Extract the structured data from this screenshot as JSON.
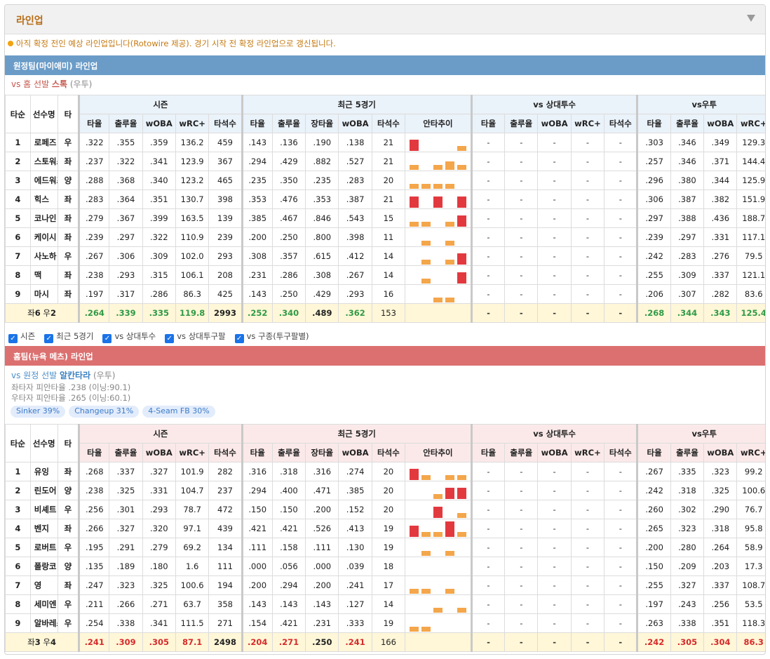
{
  "header": {
    "title": "라인업"
  },
  "notice": "아직 확정 전인 예상 라인업입니다(Rotowire 제공). 경기 시작 전 확정 라인업으로 갱신됩니다.",
  "away": {
    "bar_title": "원정팀(마이애미) 라인업",
    "vs_prefix": "vs 홈 선발 ",
    "pitcher": "스톡",
    "hand": "(우투)",
    "head_groups": [
      "시즌",
      "최근 5경기",
      "vs 상대투수",
      "vs우투"
    ],
    "col_headers": [
      "타순",
      "선수명",
      "타",
      "타율",
      "출루율",
      "wOBA",
      "wRC+",
      "타석수",
      "타율",
      "출루율",
      "장타율",
      "wOBA",
      "타석수",
      "안타추이",
      "타율",
      "출루율",
      "wOBA",
      "wRC+",
      "타석수",
      "타율",
      "출루율",
      "wOBA",
      "wRC+"
    ],
    "rows": [
      {
        "o": "1",
        "n": "로페즈",
        "h": "우",
        "s": [
          ".322",
          ".355",
          ".359",
          "136.2",
          "459"
        ],
        "r": [
          ".143",
          ".136",
          ".190",
          ".138",
          "21"
        ],
        "t": [
          3,
          0,
          0,
          0,
          1
        ],
        "v": [
          "-",
          "-",
          "-",
          "-",
          "-"
        ],
        "vr": [
          ".303",
          ".346",
          ".349",
          "129.3"
        ]
      },
      {
        "o": "2",
        "n": "스토워스",
        "h": "좌",
        "s": [
          ".237",
          ".322",
          ".341",
          "123.9",
          "367"
        ],
        "r": [
          ".294",
          ".429",
          ".882",
          ".527",
          "21"
        ],
        "t": [
          1,
          0,
          1,
          2,
          1
        ],
        "v": [
          "-",
          "-",
          "-",
          "-",
          "-"
        ],
        "vr": [
          ".257",
          ".346",
          ".371",
          "144.4"
        ]
      },
      {
        "o": "3",
        "n": "에드워즈",
        "h": "양",
        "s": [
          ".288",
          ".368",
          ".340",
          "123.2",
          "465"
        ],
        "r": [
          ".235",
          ".350",
          ".235",
          ".283",
          "20"
        ],
        "t": [
          1,
          1,
          1,
          1,
          0
        ],
        "v": [
          "-",
          "-",
          "-",
          "-",
          "-"
        ],
        "vr": [
          ".296",
          ".380",
          ".344",
          "125.9"
        ]
      },
      {
        "o": "4",
        "n": "힉스",
        "h": "좌",
        "s": [
          ".283",
          ".364",
          ".351",
          "130.7",
          "398"
        ],
        "r": [
          ".353",
          ".476",
          ".353",
          ".387",
          "21"
        ],
        "t": [
          3,
          0,
          3,
          0,
          3
        ],
        "v": [
          "-",
          "-",
          "-",
          "-",
          "-"
        ],
        "vr": [
          ".306",
          ".387",
          ".382",
          "151.9"
        ]
      },
      {
        "o": "5",
        "n": "코나인",
        "h": "좌",
        "s": [
          ".279",
          ".367",
          ".399",
          "163.5",
          "139"
        ],
        "r": [
          ".385",
          ".467",
          ".846",
          ".543",
          "15"
        ],
        "t": [
          1,
          1,
          0,
          1,
          3
        ],
        "v": [
          "-",
          "-",
          "-",
          "-",
          "-"
        ],
        "vr": [
          ".297",
          ".388",
          ".436",
          "188.7"
        ]
      },
      {
        "o": "6",
        "n": "케이시",
        "h": "좌",
        "s": [
          ".239",
          ".297",
          ".322",
          "110.9",
          "239"
        ],
        "r": [
          ".200",
          ".250",
          ".800",
          ".398",
          "11"
        ],
        "t": [
          0,
          1,
          0,
          1,
          0
        ],
        "v": [
          "-",
          "-",
          "-",
          "-",
          "-"
        ],
        "vr": [
          ".239",
          ".297",
          ".331",
          "117.1"
        ]
      },
      {
        "o": "7",
        "n": "사노하",
        "h": "우",
        "s": [
          ".267",
          ".306",
          ".309",
          "102.0",
          "293"
        ],
        "r": [
          ".308",
          ".357",
          ".615",
          ".412",
          "14"
        ],
        "t": [
          0,
          1,
          0,
          1,
          3
        ],
        "v": [
          "-",
          "-",
          "-",
          "-",
          "-"
        ],
        "vr": [
          ".242",
          ".283",
          ".276",
          "79.5"
        ]
      },
      {
        "o": "8",
        "n": "맥",
        "h": "좌",
        "s": [
          ".238",
          ".293",
          ".315",
          "106.1",
          "208"
        ],
        "r": [
          ".231",
          ".286",
          ".308",
          ".267",
          "14"
        ],
        "t": [
          0,
          1,
          0,
          0,
          3
        ],
        "v": [
          "-",
          "-",
          "-",
          "-",
          "-"
        ],
        "vr": [
          ".255",
          ".309",
          ".337",
          "121.1"
        ]
      },
      {
        "o": "9",
        "n": "마시",
        "h": "좌",
        "s": [
          ".197",
          ".317",
          ".286",
          "86.3",
          "425"
        ],
        "r": [
          ".143",
          ".250",
          ".429",
          ".293",
          "16"
        ],
        "t": [
          0,
          0,
          1,
          1,
          0
        ],
        "v": [
          "-",
          "-",
          "-",
          "-",
          "-"
        ],
        "vr": [
          ".206",
          ".307",
          ".282",
          "83.6"
        ]
      }
    ],
    "total": {
      "label_pre": "좌",
      "label_num": "6",
      "label_mid": " 우",
      "label_num2": "2",
      "s": [
        ".264",
        ".339",
        ".335",
        "119.8",
        "2993"
      ],
      "r": [
        ".252",
        ".340",
        ".489",
        ".362",
        "153"
      ],
      "v": [
        "-",
        "-",
        "-",
        "-",
        "-"
      ],
      "vr": [
        ".268",
        ".344",
        ".343",
        "125.4"
      ]
    }
  },
  "checks": [
    "시즌",
    "최근 5경기",
    "vs 상대투수",
    "vs 상대투구팔",
    "vs 구종(투구팔별)"
  ],
  "home": {
    "bar_title": "홈팀(뉴욕 메츠) 라인업",
    "vs_prefix": "vs 원정 선발 ",
    "pitcher": "알칸타라",
    "hand": "(우투)",
    "split_l": "좌타자 피안타율 .238 (이닝:90.1)",
    "split_r": "우타자 피안타율 .265 (이닝:60.1)",
    "pitches": [
      "Sinker 39%",
      "Changeup 31%",
      "4-Seam FB 30%"
    ],
    "head_groups": [
      "시즌",
      "최근 5경기",
      "vs 상대투수",
      "vs우투"
    ],
    "col_headers": [
      "타순",
      "선수명",
      "타",
      "타율",
      "출루율",
      "wOBA",
      "wRC+",
      "타석수",
      "타율",
      "출루율",
      "장타율",
      "wOBA",
      "타석수",
      "안타추이",
      "타율",
      "출루율",
      "wOBA",
      "wRC+",
      "타석수",
      "타율",
      "출루율",
      "wOBA",
      "wRC+"
    ],
    "rows": [
      {
        "o": "1",
        "n": "유잉",
        "h": "좌",
        "s": [
          ".268",
          ".337",
          ".327",
          "101.9",
          "282"
        ],
        "r": [
          ".316",
          ".318",
          ".316",
          ".274",
          "20"
        ],
        "t": [
          3,
          1,
          0,
          1,
          1
        ],
        "v": [
          "-",
          "-",
          "-",
          "-",
          "-"
        ],
        "vr": [
          ".267",
          ".335",
          ".323",
          "99.2"
        ]
      },
      {
        "o": "2",
        "n": "린도어",
        "h": "양",
        "s": [
          ".238",
          ".325",
          ".331",
          "104.7",
          "237"
        ],
        "r": [
          ".294",
          ".400",
          ".471",
          ".385",
          "20"
        ],
        "t": [
          0,
          0,
          1,
          3,
          3
        ],
        "v": [
          "-",
          "-",
          "-",
          "-",
          "-"
        ],
        "vr": [
          ".242",
          ".318",
          ".325",
          "100.6"
        ]
      },
      {
        "o": "3",
        "n": "비셰트",
        "h": "우",
        "s": [
          ".256",
          ".301",
          ".293",
          "78.7",
          "472"
        ],
        "r": [
          ".150",
          ".150",
          ".200",
          ".152",
          "20"
        ],
        "t": [
          0,
          0,
          3,
          0,
          1
        ],
        "v": [
          "-",
          "-",
          "-",
          "-",
          "-"
        ],
        "vr": [
          ".260",
          ".302",
          ".290",
          "76.7"
        ]
      },
      {
        "o": "4",
        "n": "벤지",
        "h": "좌",
        "s": [
          ".266",
          ".327",
          ".320",
          "97.1",
          "439"
        ],
        "r": [
          ".421",
          ".421",
          ".526",
          ".413",
          "19"
        ],
        "t": [
          3,
          1,
          1,
          4,
          1
        ],
        "v": [
          "-",
          "-",
          "-",
          "-",
          "-"
        ],
        "vr": [
          ".265",
          ".323",
          ".318",
          "95.8"
        ]
      },
      {
        "o": "5",
        "n": "로버트",
        "h": "우",
        "s": [
          ".195",
          ".291",
          ".279",
          "69.2",
          "134"
        ],
        "r": [
          ".111",
          ".158",
          ".111",
          ".130",
          "19"
        ],
        "t": [
          0,
          1,
          0,
          1,
          0
        ],
        "v": [
          "-",
          "-",
          "-",
          "-",
          "-"
        ],
        "vr": [
          ".200",
          ".280",
          ".264",
          "58.9"
        ]
      },
      {
        "o": "6",
        "n": "폴랑코",
        "h": "양",
        "s": [
          ".135",
          ".189",
          ".180",
          "1.6",
          "111"
        ],
        "r": [
          ".000",
          ".056",
          ".000",
          ".039",
          "18"
        ],
        "t": [
          0,
          0,
          0,
          0,
          0
        ],
        "v": [
          "-",
          "-",
          "-",
          "-",
          "-"
        ],
        "vr": [
          ".150",
          ".209",
          ".203",
          "17.3"
        ]
      },
      {
        "o": "7",
        "n": "영",
        "h": "좌",
        "s": [
          ".247",
          ".323",
          ".325",
          "100.6",
          "194"
        ],
        "r": [
          ".200",
          ".294",
          ".200",
          ".241",
          "17"
        ],
        "t": [
          1,
          1,
          0,
          1,
          0
        ],
        "v": [
          "-",
          "-",
          "-",
          "-",
          "-"
        ],
        "vr": [
          ".255",
          ".327",
          ".337",
          "108.7"
        ]
      },
      {
        "o": "8",
        "n": "세미엔",
        "h": "우",
        "s": [
          ".211",
          ".266",
          ".271",
          "63.7",
          "358"
        ],
        "r": [
          ".143",
          ".143",
          ".143",
          ".127",
          "14"
        ],
        "t": [
          0,
          0,
          1,
          0,
          1
        ],
        "v": [
          "-",
          "-",
          "-",
          "-",
          "-"
        ],
        "vr": [
          ".197",
          ".243",
          ".256",
          "53.5"
        ]
      },
      {
        "o": "9",
        "n": "알바레스",
        "h": "우",
        "s": [
          ".254",
          ".338",
          ".341",
          "111.5",
          "271"
        ],
        "r": [
          ".154",
          ".421",
          ".231",
          ".333",
          "19"
        ],
        "t": [
          1,
          1,
          0,
          0,
          0
        ],
        "v": [
          "-",
          "-",
          "-",
          "-",
          "-"
        ],
        "vr": [
          ".263",
          ".338",
          ".351",
          "118.3"
        ]
      }
    ],
    "total": {
      "label_pre": "좌",
      "label_num": "3",
      "label_mid": " 우",
      "label_num2": "4",
      "s": [
        ".241",
        ".309",
        ".305",
        "87.1",
        "2498"
      ],
      "r": [
        ".204",
        ".271",
        ".250",
        ".241",
        "166"
      ],
      "v": [
        "-",
        "-",
        "-",
        "-",
        "-"
      ],
      "vr": [
        ".242",
        ".305",
        ".304",
        "86.3"
      ]
    }
  },
  "colors": {
    "away_bar": "#6b9cc8",
    "home_bar": "#dc7070",
    "hit_high": "#e2393f",
    "hit_low": "#f4a64b",
    "good_total": "#2f9a46",
    "bad_total": "#d72a2a"
  }
}
